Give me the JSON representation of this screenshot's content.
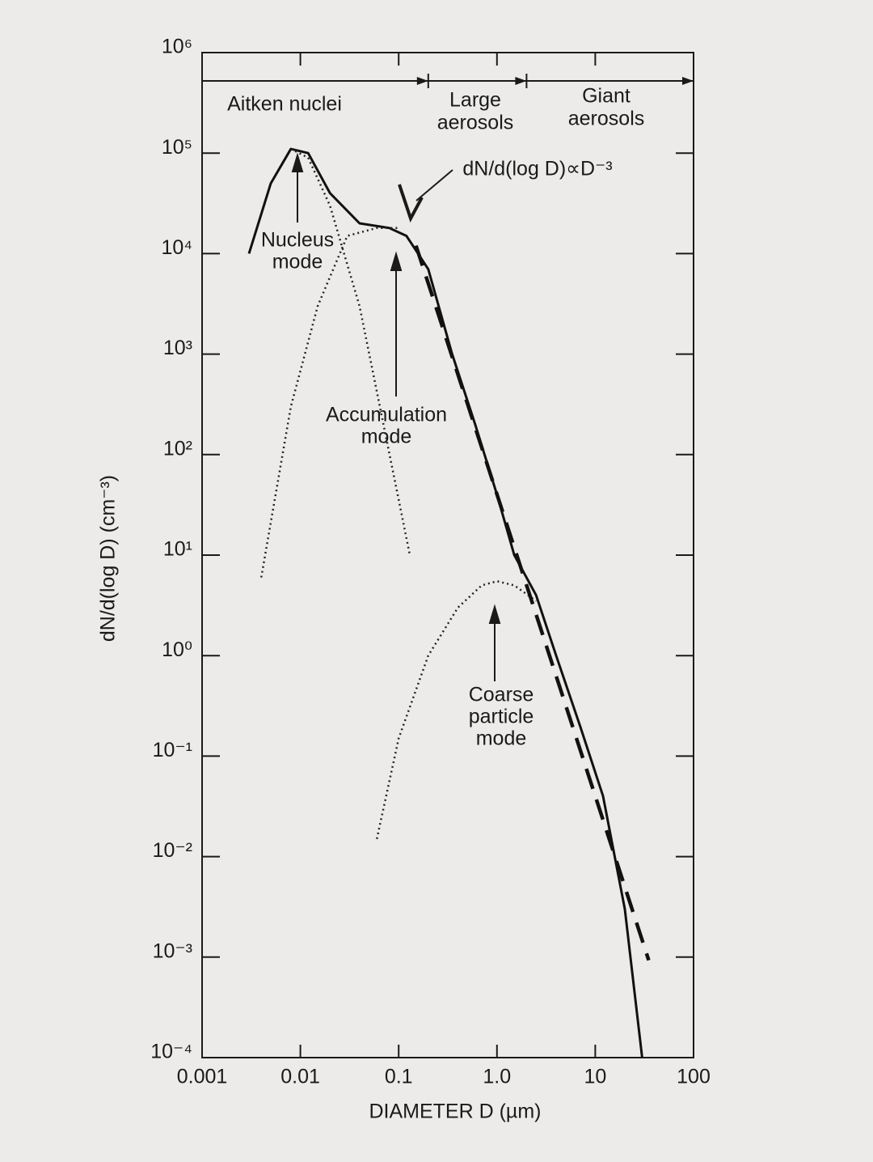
{
  "chart_data": {
    "type": "line",
    "x_label": "DIAMETER D (µm)",
    "y_label": "dN/d(log D) (cm⁻³)",
    "xscale": "log",
    "yscale": "log",
    "xlim": [
      0.001,
      100
    ],
    "ylim": [
      0.0001,
      1000000
    ],
    "xticks": [
      0.001,
      0.01,
      0.1,
      {
        "value": 1,
        "label": "1.0"
      },
      10,
      100
    ],
    "yticks": [
      {
        "value": 0.0001,
        "label": "10⁻⁴"
      },
      {
        "value": 0.001,
        "label": "10⁻³"
      },
      {
        "value": 0.01,
        "label": "10⁻²"
      },
      {
        "value": 0.1,
        "label": "10⁻¹"
      },
      {
        "value": 1,
        "label": "10⁰"
      },
      {
        "value": 10,
        "label": "10¹"
      },
      {
        "value": 100,
        "label": "10²"
      },
      {
        "value": 1000,
        "label": "10³"
      },
      {
        "value": 10000,
        "label": "10⁴"
      },
      {
        "value": 100000,
        "label": "10⁵"
      },
      {
        "value": 1000000,
        "label": "10⁶"
      }
    ],
    "regions": [
      {
        "label": [
          "Aitken nuclei"
        ],
        "range": [
          0.001,
          0.2
        ]
      },
      {
        "label": [
          "Large",
          "aerosols"
        ],
        "range": [
          0.2,
          2
        ]
      },
      {
        "label": [
          "Giant",
          "aerosols"
        ],
        "range": [
          2,
          100
        ]
      }
    ],
    "annotations": [
      [
        "dN/d(log D)∝D⁻³"
      ],
      [
        "Nucleus",
        "mode"
      ],
      [
        "Accumulation",
        "mode"
      ],
      [
        "Coarse",
        "particle",
        "mode"
      ]
    ],
    "series": [
      {
        "style": "solid",
        "color": "#111111",
        "x": [
          0.003,
          0.005,
          0.008,
          0.012,
          0.02,
          0.04,
          0.08,
          0.12,
          0.2,
          0.35,
          0.6,
          1.0,
          1.5,
          2.5,
          4,
          7,
          12,
          20,
          30
        ],
        "values": [
          10000,
          50000,
          110000,
          100000,
          40000,
          20000,
          18000,
          15000,
          7000,
          1000,
          200,
          40,
          10,
          4,
          1,
          0.2,
          0.04,
          0.003,
          0.0001
        ]
      },
      {
        "style": "dotted",
        "color": "#222222",
        "x": [
          0.008,
          0.012,
          0.02,
          0.04,
          0.07,
          0.13
        ],
        "values": [
          110000,
          90000,
          30000,
          3000,
          200,
          10
        ]
      },
      {
        "style": "dotted",
        "color": "#222222",
        "x": [
          0.004,
          0.008,
          0.015,
          0.03,
          0.06,
          0.1
        ],
        "values": [
          6,
          300,
          3000,
          15000,
          18000,
          18000
        ]
      },
      {
        "style": "dotted",
        "color": "#222222",
        "x": [
          0.06,
          0.1,
          0.2,
          0.4,
          0.7,
          1.0,
          1.5,
          2.5
        ],
        "values": [
          0.015,
          0.15,
          1,
          3,
          5,
          5.5,
          5,
          3.5
        ]
      },
      {
        "style": "dashed",
        "color": "#111111",
        "x": [
          0.15,
          35
        ],
        "values": [
          12000,
          0.00093
        ]
      }
    ]
  }
}
